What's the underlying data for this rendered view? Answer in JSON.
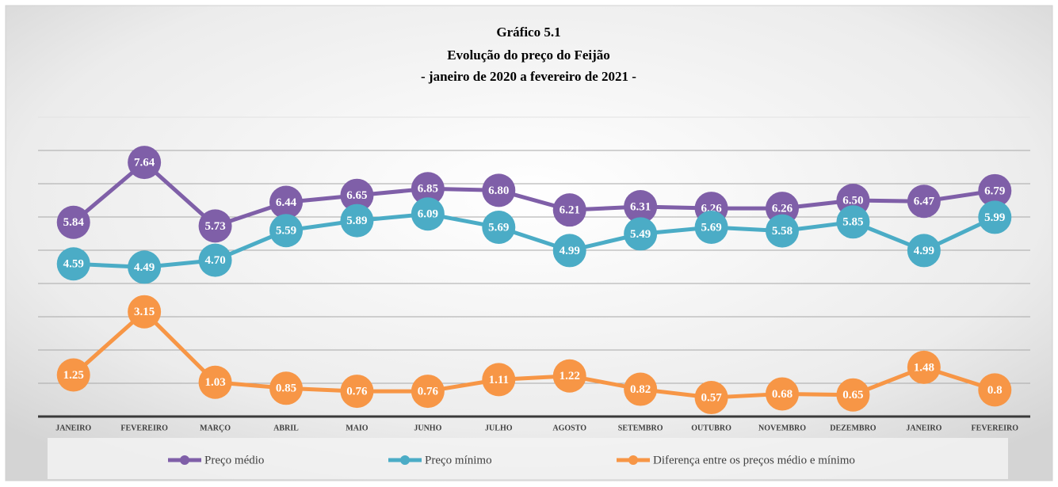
{
  "chart_data": {
    "type": "line",
    "title": [
      "Gráfico 5.1",
      "Evolução do preço do Feijão",
      "- janeiro de 2020 a fevereiro de 2021 -"
    ],
    "categories": [
      "JANEIRO",
      "FEVEREIRO",
      "MARÇO",
      "ABRIL",
      "MAIO",
      "JUNHO",
      "JULHO",
      "AGOSTO",
      "SETEMBRO",
      "OUTUBRO",
      "NOVEMBRO",
      "DEZEMBRO",
      "JANEIRO",
      "FEVEREIRO"
    ],
    "series": [
      {
        "name": "Preço médio",
        "color": "#7f5fa8",
        "values": [
          5.84,
          7.64,
          5.73,
          6.44,
          6.65,
          6.85,
          6.8,
          6.21,
          6.31,
          6.26,
          6.26,
          6.5,
          6.47,
          6.79
        ],
        "value_labels": [
          "5.84",
          "7.64",
          "5.73",
          "6.44",
          "6.65",
          "6.85",
          "6.80",
          "6.21",
          "6.31",
          "6.26",
          "6.26",
          "6.50",
          "6.47",
          "6.79"
        ]
      },
      {
        "name": "Preço mínimo",
        "color": "#4bacc6",
        "values": [
          4.59,
          4.49,
          4.7,
          5.59,
          5.89,
          6.09,
          5.69,
          4.99,
          5.49,
          5.69,
          5.58,
          5.85,
          4.99,
          5.99
        ],
        "value_labels": [
          "4.59",
          "4.49",
          "4.70",
          "5.59",
          "5.89",
          "6.09",
          "5.69",
          "4.99",
          "5.49",
          "5.69",
          "5.58",
          "5.85",
          "4.99",
          "5.99"
        ]
      },
      {
        "name": "Diferença entre os preços médio e mínimo",
        "color": "#f79646",
        "values": [
          1.25,
          3.15,
          1.03,
          0.85,
          0.76,
          0.76,
          1.11,
          1.22,
          0.82,
          0.57,
          0.68,
          0.65,
          1.48,
          0.8
        ],
        "value_labels": [
          "1.25",
          "3.15",
          "1.03",
          "0.85",
          "0.76",
          "0.76",
          "1.11",
          "1.22",
          "0.82",
          "0.57",
          "0.68",
          "0.65",
          "1.48",
          "0.8"
        ]
      }
    ],
    "ylim": [
      0,
      9
    ],
    "yticks": [
      0,
      1,
      2,
      3,
      4,
      5,
      6,
      7,
      8,
      9
    ],
    "grid": true,
    "legend": "bottom"
  }
}
